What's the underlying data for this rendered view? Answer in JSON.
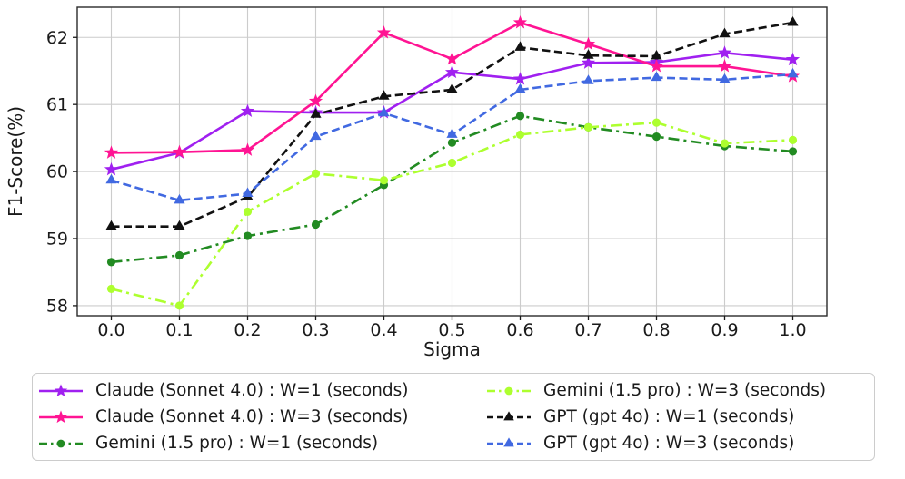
{
  "chart_data": {
    "type": "line",
    "title": "",
    "xlabel": "Sigma",
    "ylabel": "F1-Score(%)",
    "x": [
      0.0,
      0.1,
      0.2,
      0.3,
      0.4,
      0.5,
      0.6,
      0.7,
      0.8,
      0.9,
      1.0
    ],
    "x_tick_labels": [
      "0.0",
      "0.1",
      "0.2",
      "0.3",
      "0.4",
      "0.5",
      "0.6",
      "0.7",
      "0.8",
      "0.9",
      "1.0"
    ],
    "y_ticks": [
      58,
      59,
      60,
      61,
      62
    ],
    "xlim": [
      -0.05,
      1.05
    ],
    "ylim": [
      57.85,
      62.45
    ],
    "grid": true,
    "grid_color": "#cccccc",
    "text_color": "#1a1a1a",
    "legend_position": "below-chart",
    "legend_columns": 2,
    "series": [
      {
        "name": "Claude (Sonnet 4.0) : W=1 (seconds)",
        "color": "#A020F0",
        "linestyle": "solid",
        "marker": "star",
        "values": [
          60.03,
          60.28,
          60.9,
          60.88,
          60.88,
          61.48,
          61.38,
          61.62,
          61.63,
          61.77,
          61.67
        ]
      },
      {
        "name": "Claude (Sonnet 4.0) : W=3 (seconds)",
        "color": "#FF1493",
        "linestyle": "solid",
        "marker": "star",
        "values": [
          60.28,
          60.29,
          60.32,
          61.05,
          62.07,
          61.68,
          62.22,
          61.9,
          61.57,
          61.57,
          61.42
        ]
      },
      {
        "name": "Gemini (1.5 pro) : W=1 (seconds)",
        "color": "#228B22",
        "linestyle": "dashdot",
        "marker": "circle",
        "values": [
          58.65,
          58.75,
          59.04,
          59.21,
          59.8,
          60.43,
          60.83,
          60.66,
          60.52,
          60.38,
          60.3
        ]
      },
      {
        "name": "Gemini (1.5 pro) : W=3 (seconds)",
        "color": "#ADFF2F",
        "linestyle": "dashdot",
        "marker": "circle",
        "values": [
          58.25,
          58.0,
          59.4,
          59.97,
          59.87,
          60.13,
          60.55,
          60.66,
          60.73,
          60.42,
          60.47
        ]
      },
      {
        "name": "GPT (gpt 4o) : W=1 (seconds)",
        "color": "#111111",
        "linestyle": "dashed",
        "marker": "triangle",
        "values": [
          59.18,
          59.18,
          59.62,
          60.85,
          61.12,
          61.22,
          61.85,
          61.73,
          61.72,
          62.05,
          62.22
        ]
      },
      {
        "name": "GPT (gpt 4o) : W=3 (seconds)",
        "color": "#4169E1",
        "linestyle": "dashed",
        "marker": "triangle",
        "values": [
          59.87,
          59.57,
          59.67,
          60.52,
          60.87,
          60.55,
          61.22,
          61.35,
          61.4,
          61.37,
          61.45
        ]
      }
    ]
  }
}
